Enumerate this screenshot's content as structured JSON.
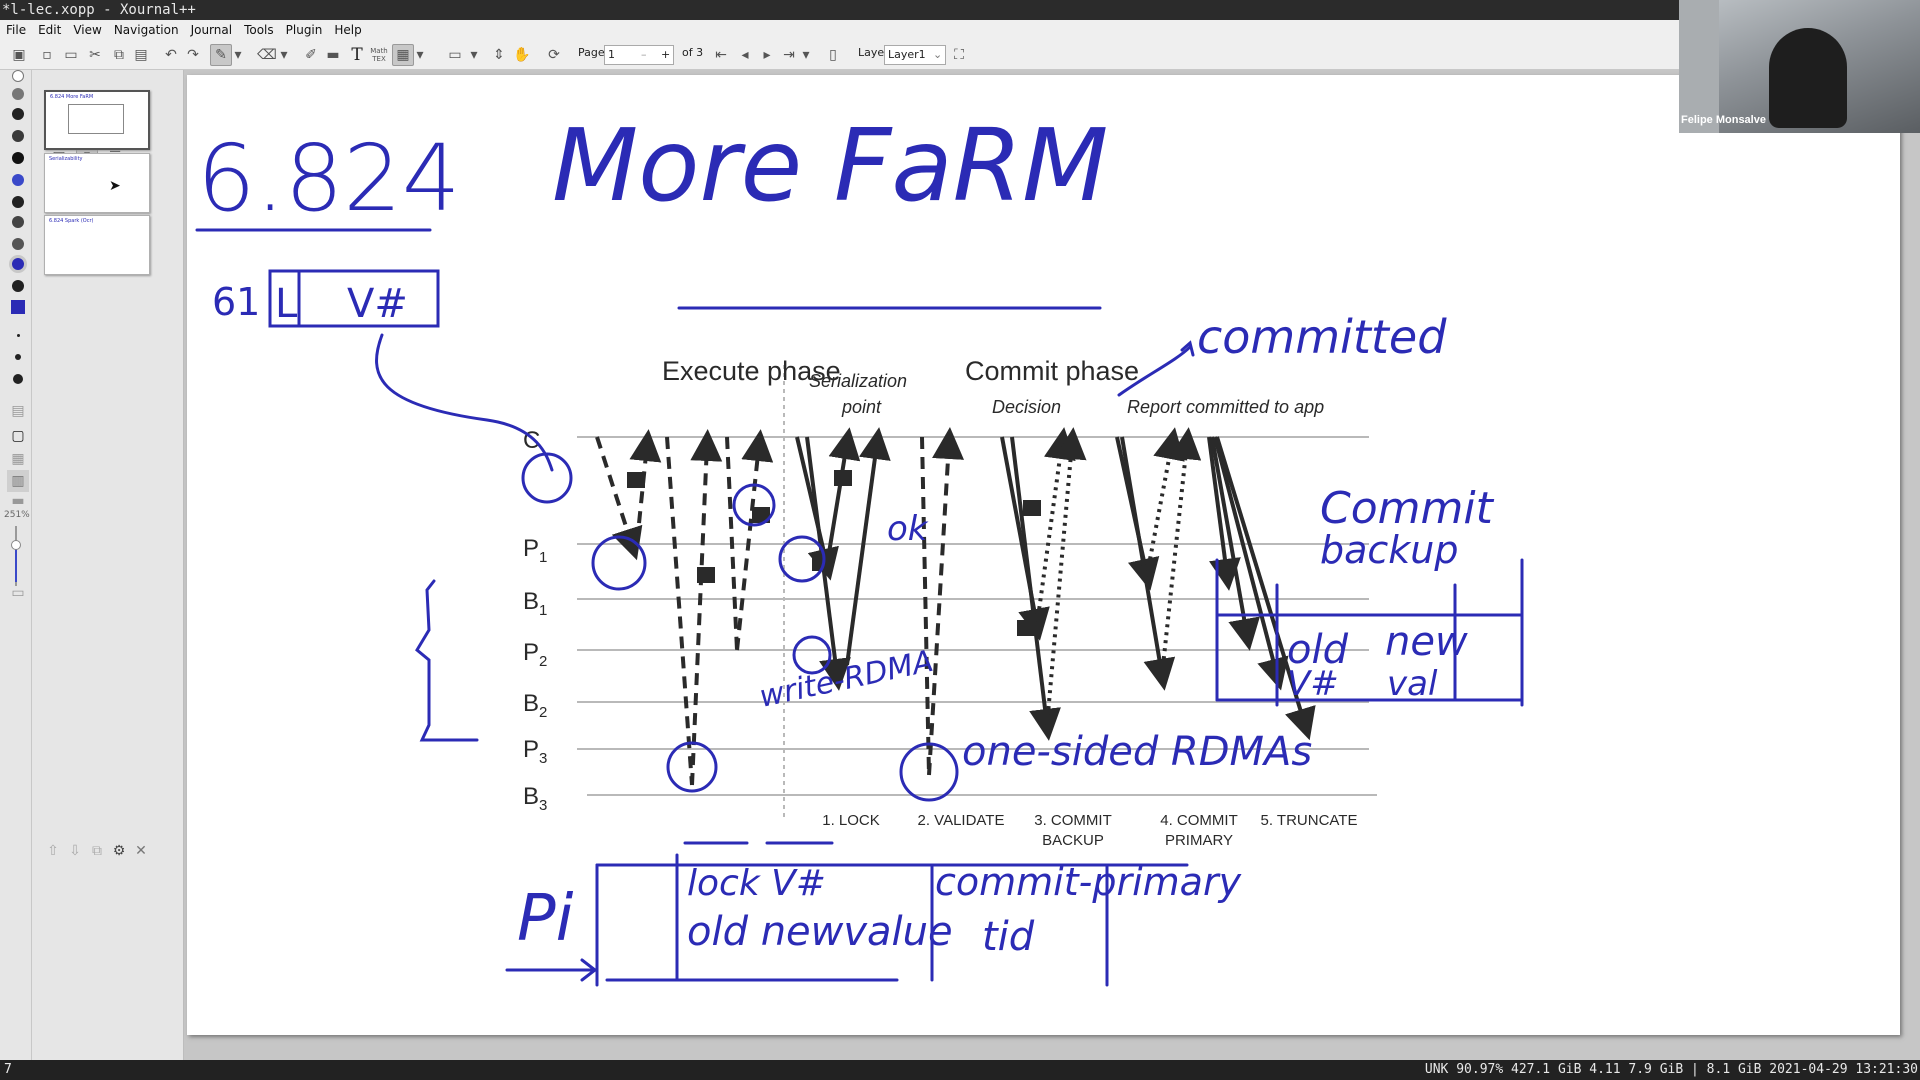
{
  "window": {
    "title": "*l-lec.xopp - Xournal++"
  },
  "menu": [
    "File",
    "Edit",
    "View",
    "Navigation",
    "Journal",
    "Tools",
    "Plugin",
    "Help"
  ],
  "toolbar": {
    "page_label": "Page",
    "page_value": "1",
    "page_total": "of 3",
    "layer_label": "Layer",
    "layer_value": "Layer1",
    "text_tool": "T",
    "tex_tool": "Math TEX"
  },
  "sidebar": {
    "zoom_readout": "251%",
    "pages": [
      {
        "caption": "6.824 More FaRM"
      },
      {
        "caption": "Serializability"
      },
      {
        "caption": "6.824 Spark (Ocr)"
      }
    ]
  },
  "webcam": {
    "participant_name": "Felipe Monsalve"
  },
  "status": {
    "left": "7",
    "right": "UNK 90.97% 427.1 GiB 4.11 7.9 GiB | 8.1 GiB 2021-04-29 13:21:30"
  },
  "note": {
    "handwritten_title_number": "6.824",
    "handwritten_title": "More FaRM",
    "object_row_label": "61",
    "object_fields": [
      "L",
      "V#"
    ],
    "annot_committed": "committed",
    "annot_ok": "ok",
    "annot_write_rdma": "write-RDMA",
    "annot_one_sided": "one-sided RDMAs",
    "annot_pi": "Pi",
    "log_lock": "lock V#",
    "log_old_new": "old newvalue",
    "log_commit_primary": "commit-primary",
    "log_tid": "tid",
    "box_title_1": "Commit",
    "box_title_2": "backup",
    "box_old": "old",
    "box_new": "new",
    "box_vnum": "V#",
    "box_val": "val"
  },
  "diagram": {
    "execute_phase": "Execute phase",
    "commit_phase": "Commit phase",
    "serialization_1": "Serialization",
    "serialization_2": "point",
    "decision": "Decision",
    "report": "Report committed to app",
    "rows": [
      "C",
      "P",
      "B",
      "P",
      "B",
      "P",
      "B"
    ],
    "row_subs": [
      "",
      "1",
      "1",
      "2",
      "2",
      "3",
      "3"
    ],
    "steps": [
      {
        "l1": "1. LOCK",
        "l2": ""
      },
      {
        "l1": "2. VALIDATE",
        "l2": ""
      },
      {
        "l1": "3. COMMIT",
        "l2": "BACKUP"
      },
      {
        "l1": "4. COMMIT",
        "l2": "PRIMARY"
      },
      {
        "l1": "5. TRUNCATE",
        "l2": ""
      }
    ]
  },
  "colors": {
    "ink_blue": "#2b2bb5",
    "dark_ink": "#2a2a2a"
  }
}
